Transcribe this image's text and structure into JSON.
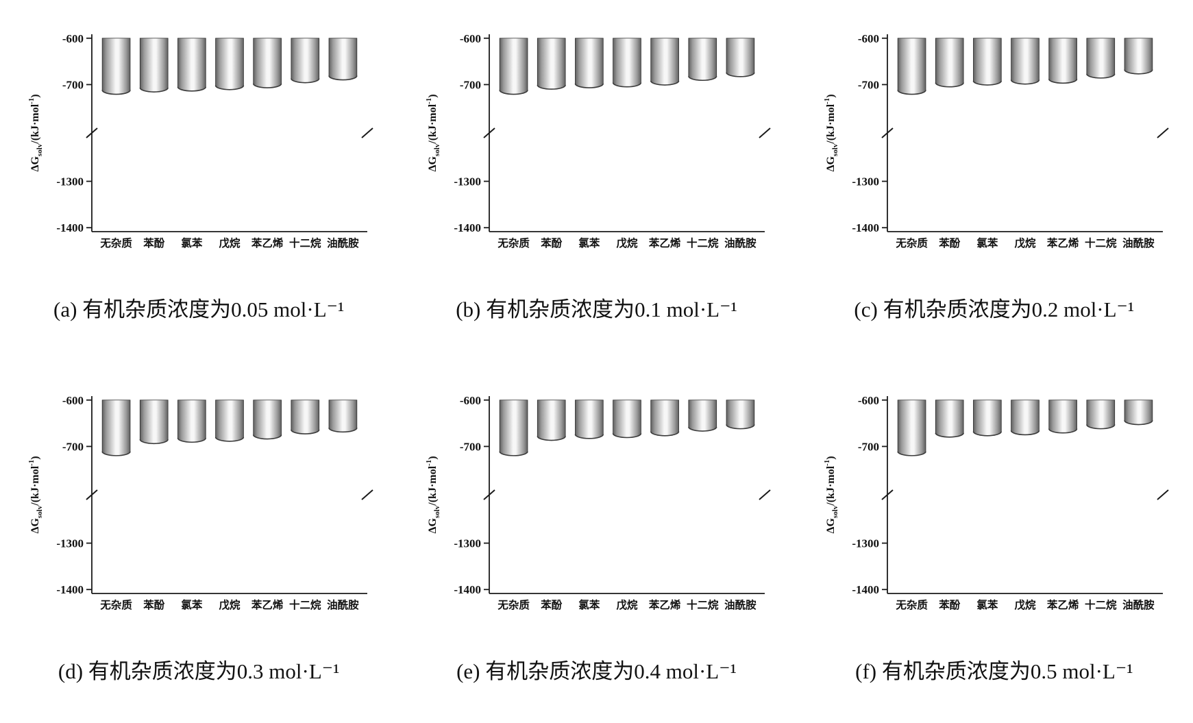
{
  "style": {
    "background": "#ffffff",
    "axis_color": "#1a1a1a",
    "text_color": "#111111",
    "bar_dark": "#5f5f5f",
    "bar_mid": "#9a9a9a",
    "bar_light": "#f7f7f7",
    "bar_edge": "#2e2e2e",
    "bar_bottom_rim": "#3a3a3a"
  },
  "axis": {
    "ylabel": "ΔGsolv/(kJ·mol⁻¹)",
    "ylabel_parts": {
      "main": "ΔG",
      "sub": "solv",
      "mid": "/(kJ·mol",
      "sup": "-1",
      "end": ")"
    },
    "break_fraction": 0.5
  },
  "chart_data": [
    {
      "type": "bar",
      "title": "(a) 有机杂质浓度为0.05 mol·L⁻¹",
      "categories": [
        "无杂质",
        "苯酚",
        "氯苯",
        "戊烷",
        "苯乙烯",
        "十二烷",
        "油酰胺"
      ],
      "values": [
        -712,
        -707,
        -705,
        -702,
        -698,
        -687,
        -681
      ],
      "ylabel": "ΔGsolv/(kJ·mol⁻¹)",
      "yticks": [
        -600,
        -700,
        -1300,
        -1400
      ],
      "ylim": [
        -1400,
        -600
      ],
      "axis_break": {
        "between": [
          -760,
          -1240
        ]
      },
      "bar_style": "cylinder-gray-gradient",
      "grid": false,
      "legend": "none"
    },
    {
      "type": "bar",
      "title": "(b) 有机杂质浓度为0.1 mol·L⁻¹",
      "categories": [
        "无杂质",
        "苯酚",
        "氯苯",
        "戊烷",
        "苯乙烯",
        "十二烷",
        "油酰胺"
      ],
      "values": [
        -712,
        -701,
        -698,
        -696,
        -692,
        -682,
        -674
      ],
      "ylabel": "ΔGsolv/(kJ·mol⁻¹)",
      "yticks": [
        -600,
        -700,
        -1300,
        -1400
      ],
      "ylim": [
        -1400,
        -600
      ],
      "axis_break": {
        "between": [
          -760,
          -1240
        ]
      },
      "bar_style": "cylinder-gray-gradient",
      "grid": false,
      "legend": "none"
    },
    {
      "type": "bar",
      "title": "(c) 有机杂质浓度为0.2 mol·L⁻¹",
      "categories": [
        "无杂质",
        "苯酚",
        "氯苯",
        "戊烷",
        "苯乙烯",
        "十二烷",
        "油酰胺"
      ],
      "values": [
        -712,
        -696,
        -692,
        -690,
        -688,
        -677,
        -668
      ],
      "ylabel": "ΔGsolv/(kJ·mol⁻¹)",
      "yticks": [
        -600,
        -700,
        -1300,
        -1400
      ],
      "ylim": [
        -1400,
        -600
      ],
      "axis_break": {
        "between": [
          -760,
          -1240
        ]
      },
      "bar_style": "cylinder-gray-gradient",
      "grid": false,
      "legend": "none"
    },
    {
      "type": "bar",
      "title": "(d) 有机杂质浓度为0.3 mol·L⁻¹",
      "categories": [
        "无杂质",
        "苯酚",
        "氯苯",
        "戊烷",
        "苯乙烯",
        "十二烷",
        "油酰胺"
      ],
      "values": [
        -711,
        -685,
        -682,
        -680,
        -675,
        -664,
        -660
      ],
      "ylabel": "ΔGsolv/(kJ·mol⁻¹)",
      "yticks": [
        -600,
        -700,
        -1300,
        -1400
      ],
      "ylim": [
        -1400,
        -600
      ],
      "axis_break": {
        "between": [
          -760,
          -1240
        ]
      },
      "bar_style": "cylinder-gray-gradient",
      "grid": false,
      "legend": "none"
    },
    {
      "type": "bar",
      "title": "(e) 有机杂质浓度为0.4 mol·L⁻¹",
      "categories": [
        "无杂质",
        "苯酚",
        "氯苯",
        "戊烷",
        "苯乙烯",
        "十二烷",
        "油酰胺"
      ],
      "values": [
        -711,
        -678,
        -674,
        -672,
        -668,
        -658,
        -653
      ],
      "ylabel": "ΔGsolv/(kJ·mol⁻¹)",
      "yticks": [
        -600,
        -700,
        -1300,
        -1400
      ],
      "ylim": [
        -1400,
        -600
      ],
      "axis_break": {
        "between": [
          -760,
          -1240
        ]
      },
      "bar_style": "cylinder-gray-gradient",
      "grid": false,
      "legend": "none"
    },
    {
      "type": "bar",
      "title": "(f) 有机杂质浓度为0.5 mol·L⁻¹",
      "categories": [
        "无杂质",
        "苯酚",
        "氯苯",
        "戊烷",
        "苯乙烯",
        "十二烷",
        "油酰胺"
      ],
      "values": [
        -711,
        -671,
        -668,
        -666,
        -662,
        -653,
        -644
      ],
      "ylabel": "ΔGsolv/(kJ·mol⁻¹)",
      "yticks": [
        -600,
        -700,
        -1300,
        -1400
      ],
      "ylim": [
        -1400,
        -600
      ],
      "axis_break": {
        "between": [
          -760,
          -1240
        ]
      },
      "bar_style": "cylinder-gray-gradient",
      "grid": false,
      "legend": "none"
    }
  ]
}
